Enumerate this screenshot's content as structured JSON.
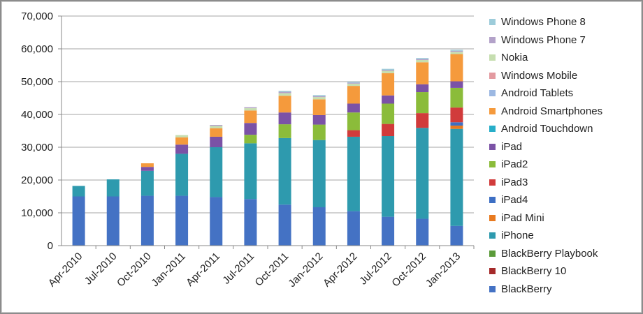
{
  "chart_data": {
    "type": "bar",
    "stacked": true,
    "title": "",
    "xlabel": "",
    "ylabel": "",
    "ylim": [
      0,
      70000
    ],
    "yticks": [
      0,
      10000,
      20000,
      30000,
      40000,
      50000,
      60000,
      70000
    ],
    "ytick_labels": [
      "0",
      "10,000",
      "20,000",
      "30,000",
      "40,000",
      "50,000",
      "60,000",
      "70,000"
    ],
    "grid": true,
    "legend_position": "right",
    "categories": [
      "Apr-2010",
      "Jul-2010",
      "Oct-2010",
      "Jan-2011",
      "Apr-2011",
      "Jul-2011",
      "Oct-2011",
      "Jan-2012",
      "Apr-2012",
      "Jul-2012",
      "Oct-2012",
      "Jan-2013"
    ],
    "series": [
      {
        "name": "BlackBerry",
        "color": "#4472C4",
        "values": [
          15000,
          15000,
          15200,
          15200,
          14800,
          14200,
          12500,
          11700,
          10500,
          8800,
          8200,
          6000
        ]
      },
      {
        "name": "BlackBerry 10",
        "color": "#A52A2A",
        "values": [
          0,
          0,
          0,
          0,
          0,
          0,
          0,
          0,
          0,
          0,
          0,
          0
        ]
      },
      {
        "name": "BlackBerry  Playbook",
        "color": "#5B9B3A",
        "values": [
          0,
          0,
          0,
          0,
          0,
          0,
          0,
          0,
          0,
          0,
          0,
          0
        ]
      },
      {
        "name": "iPhone",
        "color": "#2E9AAE",
        "values": [
          3200,
          5200,
          7600,
          12800,
          15200,
          17000,
          20300,
          20500,
          22700,
          24600,
          27700,
          29600
        ]
      },
      {
        "name": "iPad Mini",
        "color": "#E87A20",
        "values": [
          0,
          0,
          0,
          0,
          0,
          0,
          0,
          0,
          0,
          0,
          0,
          1000
        ]
      },
      {
        "name": "iPad4",
        "color": "#3D6FC4",
        "values": [
          0,
          0,
          0,
          0,
          0,
          0,
          0,
          0,
          0,
          0,
          0,
          1000
        ]
      },
      {
        "name": "iPad3",
        "color": "#D13B3B",
        "values": [
          0,
          0,
          0,
          0,
          0,
          0,
          0,
          0,
          2000,
          3700,
          4500,
          4500
        ]
      },
      {
        "name": "iPad2",
        "color": "#8BBC3A",
        "values": [
          0,
          0,
          0,
          0,
          0,
          2600,
          4200,
          4700,
          5400,
          6200,
          6400,
          6000
        ]
      },
      {
        "name": "iPad",
        "color": "#7B52A6",
        "values": [
          0,
          0,
          1200,
          2800,
          3200,
          3600,
          3600,
          2900,
          2700,
          2500,
          2400,
          2000
        ]
      },
      {
        "name": "Android Touchdown",
        "color": "#27AEC9",
        "values": [
          0,
          0,
          0,
          0,
          0,
          0,
          0,
          0,
          0,
          0,
          0,
          0
        ]
      },
      {
        "name": "Android Smartphones",
        "color": "#F59A3C",
        "values": [
          0,
          0,
          1100,
          2200,
          2600,
          3800,
          5100,
          4800,
          5400,
          6800,
          6700,
          8300
        ]
      },
      {
        "name": "Android Tablets",
        "color": "#9CB8E2",
        "values": [
          0,
          0,
          0,
          0,
          0,
          0,
          0,
          0,
          0,
          0,
          0,
          0
        ]
      },
      {
        "name": "Windows Mobile",
        "color": "#E39AA0",
        "values": [
          0,
          0,
          0,
          0,
          0,
          0,
          0,
          0,
          0,
          0,
          0,
          0
        ]
      },
      {
        "name": "Nokia",
        "color": "#C6DEB0",
        "values": [
          0,
          0,
          0,
          700,
          700,
          700,
          800,
          700,
          700,
          700,
          700,
          700
        ]
      },
      {
        "name": "Windows Phone 7",
        "color": "#B3A2C9",
        "values": [
          0,
          0,
          0,
          0,
          300,
          300,
          400,
          300,
          300,
          300,
          300,
          300
        ]
      },
      {
        "name": "Windows Phone 8",
        "color": "#9DCCDA",
        "values": [
          0,
          0,
          0,
          0,
          0,
          0,
          300,
          300,
          300,
          300,
          300,
          300
        ]
      }
    ]
  }
}
